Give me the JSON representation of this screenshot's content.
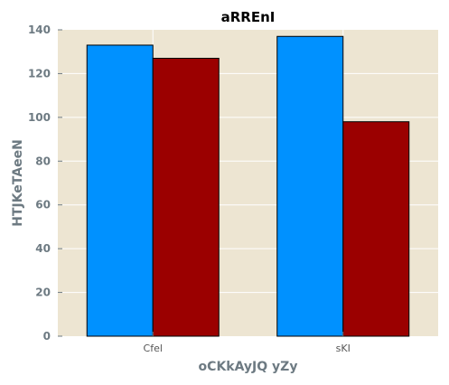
{
  "chart_data": {
    "type": "bar",
    "title": "aRREnI",
    "xlabel": "oCKkAyJQ yZy",
    "ylabel": "HTJKeTAeeN",
    "categories": [
      "Cfel",
      "sKI"
    ],
    "series": [
      {
        "values": [
          133,
          137
        ],
        "color": "#0091ff"
      },
      {
        "values": [
          127,
          98
        ],
        "color": "#9b0000"
      }
    ],
    "ylim": [
      0,
      140
    ],
    "yticks": [
      0,
      20,
      40,
      60,
      80,
      100,
      120,
      140
    ],
    "grid": true,
    "plot_background": "#ede5d2",
    "grid_color": "#ffffff",
    "legend": "none"
  }
}
